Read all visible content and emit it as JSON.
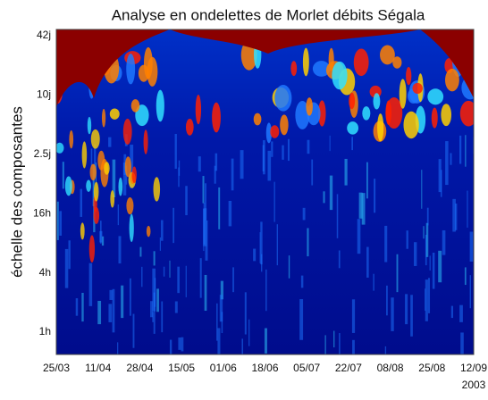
{
  "chart_data": {
    "type": "heatmap",
    "title": "Analyse en ondelettes de Morlet débits Ségala",
    "ylabel": "échelle des composantes",
    "x_ticklabels": [
      "25/03",
      "11/04",
      "28/04",
      "15/05",
      "01/06",
      "18/06",
      "05/07",
      "22/07",
      "08/08",
      "25/08",
      "12/09"
    ],
    "x_year": "2003",
    "y_ticklabels": [
      "42j",
      "10j",
      "2.5j",
      "16h",
      "4h",
      "1h"
    ]
  }
}
